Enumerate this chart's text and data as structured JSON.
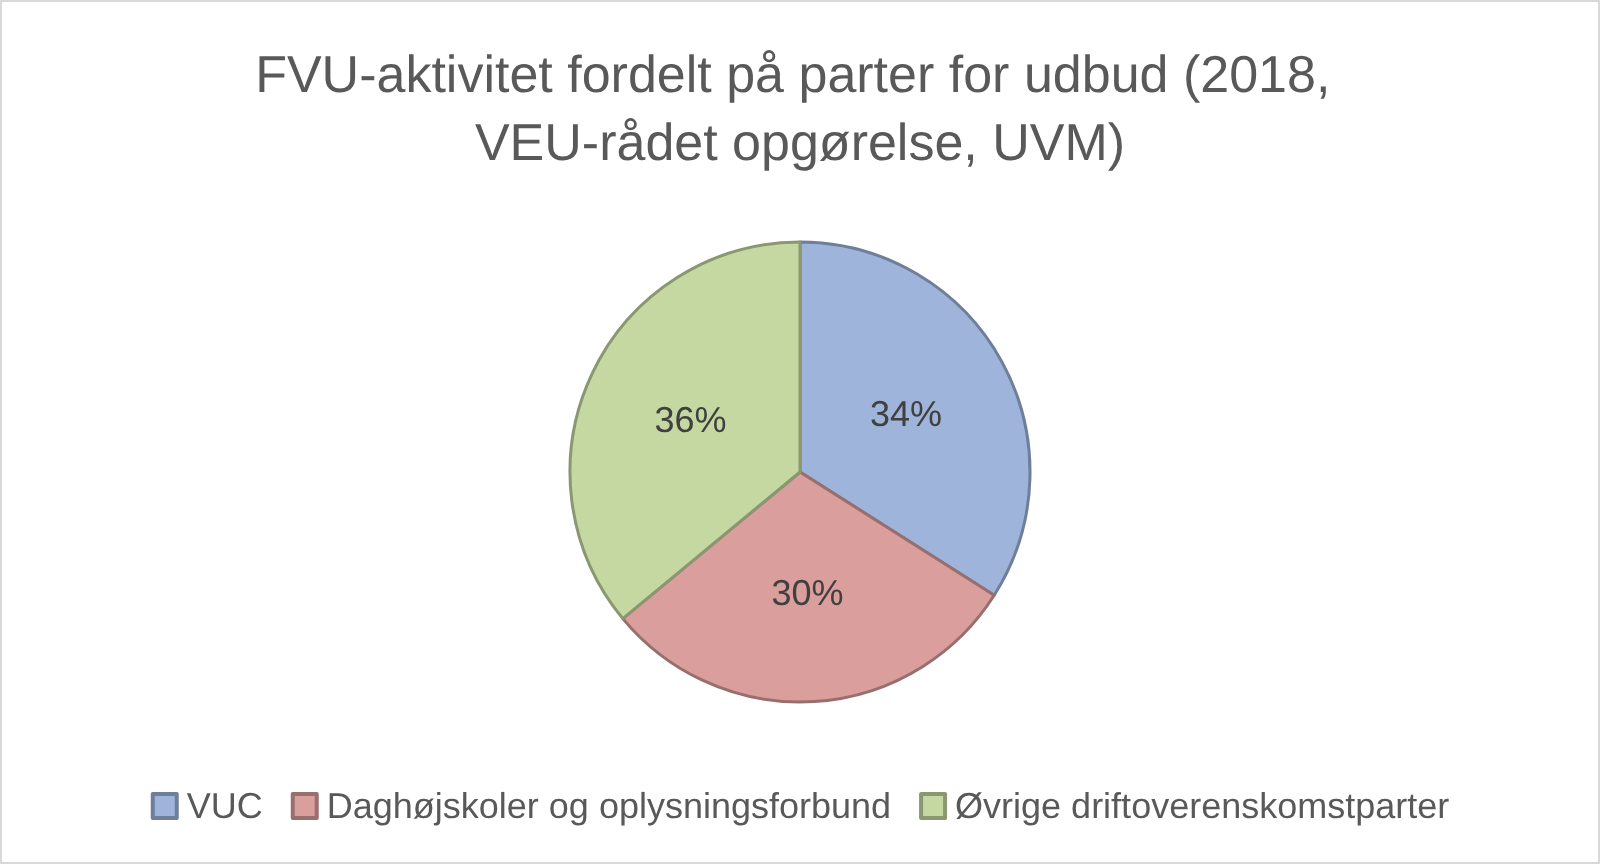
{
  "chart_data": {
    "type": "pie",
    "title": "FVU-aktivitet fordelt på parter for udbud (2018, VEU-rådet opgørelse, UVM)",
    "categories": [
      "VUC",
      "Daghøjskoler og oplysningsforbund",
      "Øvrige driftoverenskomstparter"
    ],
    "values": [
      34,
      30,
      36
    ],
    "colors": [
      "#9fb4db",
      "#da9e9d",
      "#c5d8a2"
    ],
    "value_labels": [
      "34%",
      "30%",
      "36%"
    ],
    "legend": "bottom"
  }
}
